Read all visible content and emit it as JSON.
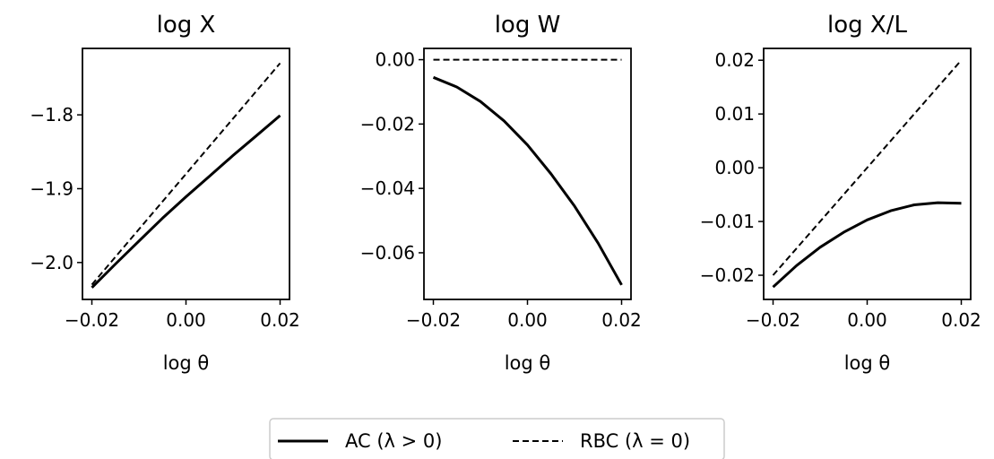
{
  "legend": {
    "location": "bottom-center",
    "entries": [
      {
        "label": "AC (λ > 0)",
        "style": "solid"
      },
      {
        "label": "RBC (λ = 0)",
        "style": "dashed"
      }
    ]
  },
  "colors": {
    "line": "#000000",
    "background": "#ffffff",
    "legend_border": "#cccccc"
  },
  "chart_data": [
    {
      "type": "line",
      "title": "log X",
      "xlabel": "log θ",
      "ylabel": "",
      "xlim": [
        -0.022,
        0.022
      ],
      "ylim": [
        -2.05,
        -1.71
      ],
      "xticks": [
        -0.02,
        0.0,
        0.02
      ],
      "xtick_labels": [
        "−0.02",
        "0.00",
        "0.02"
      ],
      "yticks": [
        -2.0,
        -1.9,
        -1.8
      ],
      "ytick_labels": [
        "−2.0",
        "−1.9",
        "−1.8"
      ],
      "grid": false,
      "series": [
        {
          "name": "AC (λ > 0)",
          "style": "solid",
          "x": [
            -0.02,
            -0.015,
            -0.01,
            -0.005,
            0.0,
            0.005,
            0.01,
            0.015,
            0.02
          ],
          "y": [
            -2.034,
            -2.002,
            -1.971,
            -1.94,
            -1.911,
            -1.883,
            -1.855,
            -1.828,
            -1.801
          ]
        },
        {
          "name": "RBC (λ = 0)",
          "style": "dashed",
          "x": [
            -0.02,
            0.02
          ],
          "y": [
            -2.03,
            -1.73
          ]
        }
      ]
    },
    {
      "type": "line",
      "title": "log W",
      "xlabel": "log θ",
      "ylabel": "",
      "xlim": [
        -0.022,
        0.022
      ],
      "ylim": [
        -0.0745,
        0.0035
      ],
      "xticks": [
        -0.02,
        0.0,
        0.02
      ],
      "xtick_labels": [
        "−0.02",
        "0.00",
        "0.02"
      ],
      "yticks": [
        -0.06,
        -0.04,
        -0.02,
        0.0
      ],
      "ytick_labels": [
        "−0.06",
        "−0.04",
        "−0.02",
        "0.00"
      ],
      "grid": false,
      "series": [
        {
          "name": "AC (λ > 0)",
          "style": "solid",
          "x": [
            -0.02,
            -0.015,
            -0.01,
            -0.005,
            0.0,
            0.005,
            0.01,
            0.015,
            0.02
          ],
          "y": [
            -0.0055,
            -0.0085,
            -0.013,
            -0.019,
            -0.0265,
            -0.0355,
            -0.0455,
            -0.057,
            -0.07
          ]
        },
        {
          "name": "RBC (λ = 0)",
          "style": "dashed",
          "x": [
            -0.02,
            0.02
          ],
          "y": [
            0.0,
            0.0
          ]
        }
      ]
    },
    {
      "type": "line",
      "title": "log X/L",
      "xlabel": "log θ",
      "ylabel": "",
      "xlim": [
        -0.022,
        0.022
      ],
      "ylim": [
        -0.0245,
        0.0222
      ],
      "xticks": [
        -0.02,
        0.0,
        0.02
      ],
      "xtick_labels": [
        "−0.02",
        "0.00",
        "0.02"
      ],
      "yticks": [
        -0.02,
        -0.01,
        0.0,
        0.01,
        0.02
      ],
      "ytick_labels": [
        "−0.02",
        "−0.01",
        "0.00",
        "0.01",
        "0.02"
      ],
      "grid": false,
      "series": [
        {
          "name": "AC (λ > 0)",
          "style": "solid",
          "x": [
            -0.02,
            -0.015,
            -0.01,
            -0.005,
            0.0,
            0.005,
            0.01,
            0.015,
            0.02
          ],
          "y": [
            -0.0222,
            -0.0182,
            -0.0148,
            -0.012,
            -0.0097,
            -0.008,
            -0.0069,
            -0.0065,
            -0.0066
          ]
        },
        {
          "name": "RBC (λ = 0)",
          "style": "dashed",
          "x": [
            -0.02,
            0.02
          ],
          "y": [
            -0.02,
            0.02
          ]
        }
      ]
    }
  ]
}
